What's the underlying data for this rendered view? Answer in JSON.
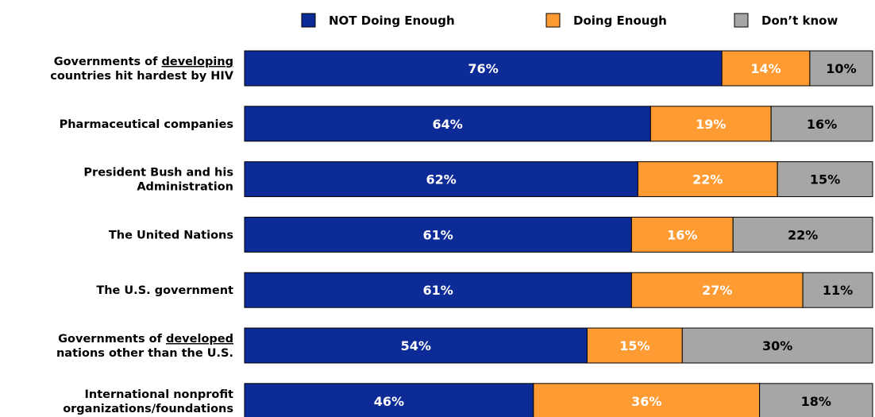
{
  "chart_data": {
    "type": "bar",
    "orientation": "horizontal",
    "stacked": true,
    "title": "",
    "xlabel": "",
    "ylabel": "",
    "xlim": [
      0,
      100
    ],
    "grid": false,
    "legend_position": "top",
    "categories": [
      {
        "lines": [
          [
            "Governments of ",
            ""
          ],
          [
            "developing",
            "u"
          ],
          [
            "",
            ""
          ]
        ],
        "line2": "countries hit hardest by HIV"
      },
      {
        "lines": [
          [
            "Pharmaceutical companies",
            ""
          ]
        ],
        "line2": ""
      },
      {
        "lines": [
          [
            "President Bush and his",
            ""
          ]
        ],
        "line2": "Administration"
      },
      {
        "lines": [
          [
            "The United Nations",
            ""
          ]
        ],
        "line2": ""
      },
      {
        "lines": [
          [
            "The U.S. government",
            ""
          ]
        ],
        "line2": ""
      },
      {
        "lines": [
          [
            "Governments of ",
            ""
          ],
          [
            "developed",
            "u"
          ],
          [
            "",
            ""
          ]
        ],
        "line2": "nations other than the U.S."
      },
      {
        "lines": [
          [
            "International nonprofit",
            ""
          ]
        ],
        "line2": "organizations/foundations"
      }
    ],
    "series": [
      {
        "name": "NOT Doing Enough",
        "color": "#0D2B97",
        "label_color": "#FFFFFF",
        "values": [
          76,
          64,
          62,
          61,
          61,
          54,
          46
        ]
      },
      {
        "name": "Doing Enough",
        "color": "#FF9B33",
        "label_color": "#FFFFFF",
        "values": [
          14,
          19,
          22,
          16,
          27,
          15,
          36
        ]
      },
      {
        "name": "Don’t know",
        "color": "#A6A6A6",
        "label_color": "#000000",
        "values": [
          10,
          16,
          15,
          22,
          11,
          30,
          18
        ]
      }
    ],
    "value_suffix": "%"
  }
}
